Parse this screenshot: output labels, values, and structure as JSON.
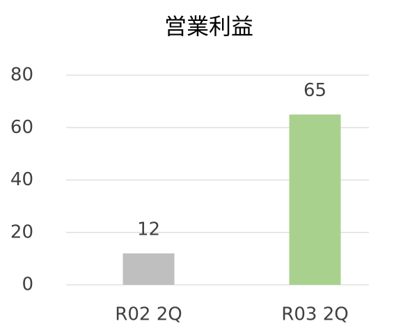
{
  "chart_data": {
    "type": "bar",
    "title": "営業利益",
    "categories": [
      "R02 2Q",
      "R03 2Q"
    ],
    "values": [
      12,
      65
    ],
    "colors": [
      "#bfbfbf",
      "#a9d18e"
    ],
    "ylim": [
      0,
      80
    ],
    "yticks": [
      0,
      20,
      40,
      60,
      80
    ],
    "grid": true,
    "data_labels": true
  }
}
